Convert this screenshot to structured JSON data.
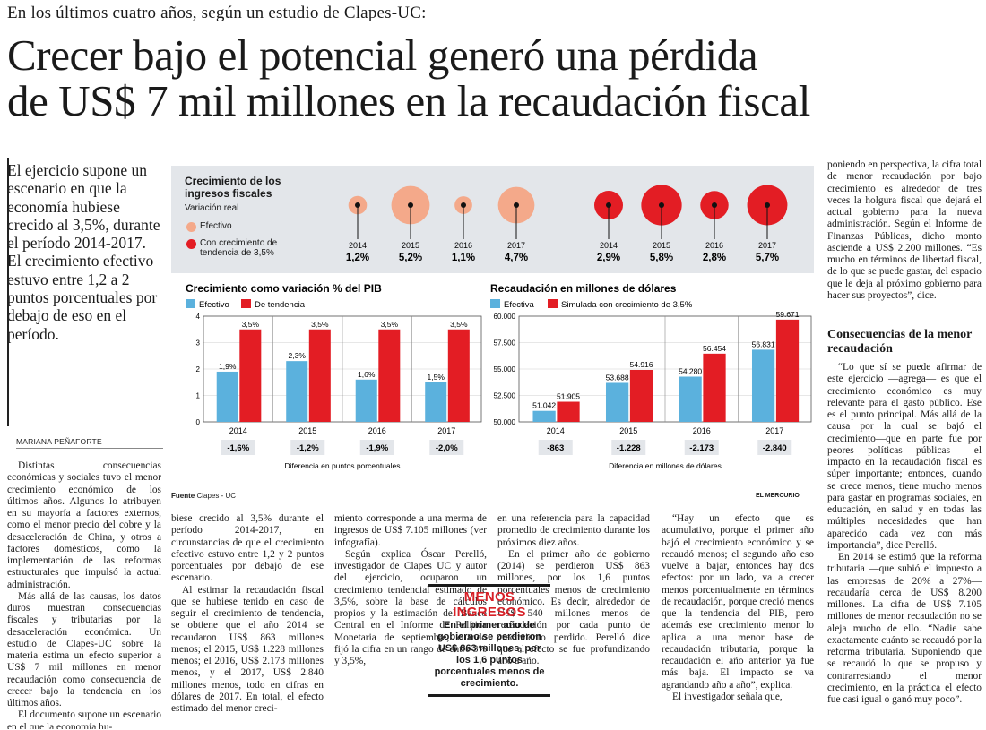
{
  "article": {
    "kicker": "En los últimos cuatro años, según un estudio de Clapes-UC:",
    "headline_line1": "Crecer bajo el potencial generó una pérdida",
    "headline_line2": "de US$ 7 mil millones en la recaudación fiscal",
    "lead": "El ejercicio supone un escenario en que la economía hubiese crecido al 3,5%, durante el período 2014-2017. El crecimiento efectivo estuvo entre 1,2 a 2 puntos porcentuales por debajo de eso en el período.",
    "byline": "MARIANA PEÑAFORTE",
    "col1_p1": "Distintas consecuencias económicas y sociales tuvo el menor crecimiento económico de los últimos años. Algunos lo atribuyen en su mayoría a factores externos, como el menor precio del cobre y la desaceleración de China, y otros a factores domésticos, como la implementación de las reformas estructurales que impulsó la actual administración.",
    "col1_p2": "Más allá de las causas, los datos duros muestran consecuencias fiscales y tributarias por la desaceleración económica. Un estudio de Clapes-UC sobre la materia estima un efecto superior a US$ 7 mil millones en menor recaudación como consecuencia de crecer bajo la tendencia en los últimos años.",
    "col1_p3": "El documento supone un escenario en el que la economía hu-",
    "col2_p1": "biese crecido al 3,5% durante el período 2014-2017, en circunstancias de que el crecimiento efectivo estuvo entre 1,2 y 2 puntos porcentuales por debajo de ese escenario.",
    "col2_p2": "Al estimar la recaudación fiscal que se hubiese tenido en caso de seguir el crecimiento de tendencia, se obtiene que el año 2014 se recaudaron US$ 863 millones menos; el 2015, US$ 1.228 millones menos; el 2016, US$ 2.173 millones menos, y el 2017, US$ 2.840 millones menos, todo en cifras en dólares de 2017. En total, el efecto estimado del menor creci-",
    "col3_p1": "miento corresponde a una merma de ingresos de US$ 7.105 millones (ver infografía).",
    "col3_p2": "Según explica Óscar Perelló, investigador de Clapes UC y autor del ejercicio, ocuparon un crecimiento tendencial estimado de 3,5%, sobre la base de cálculos propios y la estimación del Banco Central en el Informe de Política Monetaria de septiembre, cuando fijó la cifra en un rango de entre 3% y 3,5%,",
    "col4_p1": "en una referencia para la capacidad promedio de crecimiento durante los próximos diez años.",
    "col4_p2": "En el primer año de gobierno (2014) se perdieron US$ 863 millones, por los 1,6 puntos porcentuales menos de crecimiento económico. Es decir, alrededor de US$ 540 millones menos de recaudación por cada punto de crecimiento perdido. Perelló dice que el efecto se fue profundizando año a año.",
    "col5_p1": "“Hay un efecto que es acumulativo, porque el primer año bajó el crecimiento económico y se recaudó menos; el segundo año eso vuelve a bajar, entonces hay dos efectos: por un lado, va a crecer menos porcentualmente en términos de recaudación, porque creció menos que la tendencia del PIB, pero además ese crecimiento menor lo aplica a una menor base de recaudación tributaria, porque la recaudación el año anterior ya fue más baja. El impacto se va agrandando año a año”, explica.",
    "col5_p2": "El investigador señala que,",
    "col6_p1": "poniendo en perspectiva, la cifra total de menor recaudación por bajo crecimiento es alrededor de tres veces la holgura fiscal que dejará el actual gobierno para la nueva administración. Según el Informe de Finanzas Públicas, dicho monto asciende a US$ 2.200 millones. “Es mucho en términos de libertad fiscal, de lo que se puede gastar, del espacio que le deja al próximo gobierno para hacer sus proyectos”, dice.",
    "subhead": "Consecuencias de la menor recaudación",
    "col6_p2": "“Lo que sí se puede afirmar de este ejercicio —agrega— es que el crecimiento económico es muy relevante para el gasto público. Ese es el punto principal. Más allá de la causa por la cual se bajó el crecimiento—que en parte fue por peores políticas públicas— el impacto en la recaudación fiscal es súper importante; entonces, cuando se crece menos, tiene mucho menos para gastar en programas sociales, en educación, en salud y en todas las múltiples necesidades que han aparecido cada vez con más importancia”, dice Perelló.",
    "col6_p3": "En 2014 se estimó que la reforma tributaria —que subió el impuesto a las empresas de 20% a 27%— recaudaría cerca de US$ 8.200 millones. La cifra de US$ 7.105 millones de menor recaudación no se aleja mucho de ello. “Nadie sabe exactamente cuánto se recaudó por la reforma tributaria. Suponiendo que se recaudó lo que se propuso y contrarrestando el menor crecimiento, en la práctica el efecto fue casi igual o ganó muy poco”.",
    "callout_title": "MENOS INGRESOS",
    "callout_body": "En el primer año de gobierno se perdieron US$ 863 millones, por los 1,6 puntos porcentuales menos de crecimiento."
  },
  "infographic": {
    "bubbles_title": "Crecimiento de los ingresos fiscales",
    "bubbles_subtitle": "Variación real",
    "legend_efectivo": "Efectivo",
    "legend_tendencia": "Con crecimiento de tendencia de 3,5%",
    "source_label": "Fuente",
    "source_value": "Clapes - UC",
    "credit": "EL MERCURIO",
    "colors": {
      "efectivo_light": "#f4a98a",
      "tendencia": "#e31d24",
      "bar_blue": "#5bb1dd",
      "bar_red": "#e31d24",
      "panel": "#e3e6ea"
    }
  },
  "chart_data": [
    {
      "type": "bubble",
      "title": "Crecimiento de los ingresos fiscales",
      "subtitle": "Variación real",
      "series": [
        {
          "name": "Efectivo",
          "x": [
            "2014",
            "2015",
            "2016",
            "2017"
          ],
          "values": [
            1.2,
            5.2,
            1.1,
            4.7
          ],
          "labels": [
            "1,2%",
            "5,2%",
            "1,1%",
            "4,7%"
          ]
        },
        {
          "name": "Con crecimiento de tendencia de 3,5%",
          "x": [
            "2014",
            "2015",
            "2016",
            "2017"
          ],
          "values": [
            2.9,
            5.8,
            2.8,
            5.7
          ],
          "labels": [
            "2,9%",
            "5,8%",
            "2,8%",
            "5,7%"
          ]
        }
      ]
    },
    {
      "type": "bar",
      "title": "Crecimiento como variación % del PIB",
      "categories": [
        "2014",
        "2015",
        "2016",
        "2017"
      ],
      "series": [
        {
          "name": "Efectivo",
          "values": [
            1.9,
            2.3,
            1.6,
            1.5
          ],
          "labels": [
            "1,9%",
            "2,3%",
            "1,6%",
            "1,5%"
          ]
        },
        {
          "name": "De tendencia",
          "values": [
            3.5,
            3.5,
            3.5,
            3.5
          ],
          "labels": [
            "3,5%",
            "3,5%",
            "3,5%",
            "3,5%"
          ]
        }
      ],
      "ylim": [
        0,
        4
      ],
      "yticks": [
        "0",
        "1",
        "2",
        "3",
        "4"
      ],
      "differences": [
        "-1,6%",
        "-1,2%",
        "-1,9%",
        "-2,0%"
      ],
      "differences_label": "Diferencia en puntos porcentuales"
    },
    {
      "type": "bar",
      "title": "Recaudación en millones de dólares",
      "categories": [
        "2014",
        "2015",
        "2016",
        "2017"
      ],
      "series": [
        {
          "name": "Efectiva",
          "values": [
            51042,
            53688,
            54280,
            56831
          ],
          "labels": [
            "51.042",
            "53.688",
            "54.280",
            "56.831"
          ]
        },
        {
          "name": "Simulada con crecimiento de 3,5%",
          "values": [
            51905,
            54916,
            56454,
            59671
          ],
          "labels": [
            "51.905",
            "54.916",
            "56.454",
            "59.671"
          ]
        }
      ],
      "ylim": [
        50000,
        60000
      ],
      "yticks": [
        "50.000",
        "52.500",
        "55.000",
        "57.500",
        "60.000"
      ],
      "differences": [
        "-863",
        "-1.228",
        "-2.173",
        "-2.840"
      ],
      "differences_label": "Diferencia en millones de dólares"
    }
  ]
}
